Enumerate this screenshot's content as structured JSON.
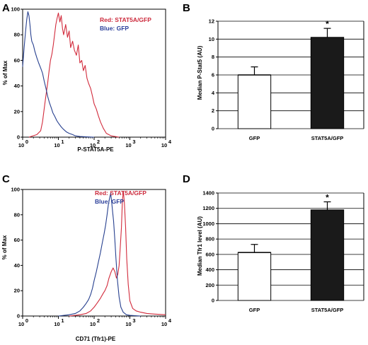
{
  "panels": {
    "A": "A",
    "B": "B",
    "C": "C",
    "D": "D"
  },
  "colors": {
    "red": "#d22b3c",
    "blue": "#27408f",
    "bar_white": "#ffffff",
    "bar_black": "#1a1a1a"
  },
  "chart_data": [
    {
      "panel": "A",
      "type": "line",
      "xlabel": "P-STAT5A-PE",
      "ylabel": "% of Max",
      "x_scale": "log",
      "xlim": [
        1,
        10000
      ],
      "ylim": [
        0,
        100
      ],
      "x_ticks": [
        "10",
        "10",
        "10",
        "10",
        "10"
      ],
      "x_tick_exponents": [
        "0",
        "1",
        "2",
        "3",
        "4"
      ],
      "y_ticks": [
        "0",
        "20",
        "40",
        "60",
        "80",
        "100"
      ],
      "legend": [
        "Red: STAT5A/GFP",
        "Blue: GFP"
      ],
      "series": [
        {
          "name": "Red: STAT5A/GFP",
          "color": "#d22b3c",
          "x": [
            1.5,
            2.5,
            3.2,
            3.6,
            4.0,
            4.5,
            5.0,
            5.5,
            6.0,
            6.6,
            7.2,
            7.8,
            8.5,
            9.2,
            10,
            11,
            12,
            13,
            14,
            16,
            18,
            20,
            22,
            25,
            28,
            32,
            36,
            40,
            45,
            50,
            56,
            63,
            70,
            80,
            90,
            100,
            115,
            130,
            150,
            180,
            220,
            300,
            500
          ],
          "y": [
            0,
            2,
            5,
            12,
            22,
            33,
            42,
            52,
            60,
            65,
            72,
            80,
            88,
            93,
            97,
            90,
            95,
            85,
            80,
            88,
            78,
            83,
            70,
            75,
            68,
            64,
            72,
            58,
            60,
            52,
            56,
            46,
            42,
            38,
            32,
            26,
            22,
            17,
            12,
            7,
            3,
            1,
            0
          ]
        },
        {
          "name": "Blue: GFP",
          "color": "#27408f",
          "x": [
            1,
            1.1,
            1.2,
            1.3,
            1.4,
            1.5,
            1.6,
            1.7,
            1.8,
            2.0,
            2.2,
            2.5,
            2.8,
            3.2,
            3.6,
            4.0,
            4.5,
            5.0,
            5.6,
            6.3,
            7.0,
            8.0,
            9.0,
            10,
            12,
            14,
            17,
            20,
            25,
            30,
            40,
            60,
            100
          ],
          "y": [
            55,
            70,
            82,
            92,
            98,
            95,
            88,
            80,
            75,
            72,
            67,
            62,
            58,
            54,
            50,
            44,
            38,
            32,
            27,
            23,
            19,
            16,
            13,
            11,
            8,
            6,
            4,
            3,
            2,
            1,
            0.5,
            0.2,
            0
          ]
        }
      ]
    },
    {
      "panel": "B",
      "type": "bar",
      "categories": [
        "GFP",
        "STAT5A/GFP"
      ],
      "values": [
        6.0,
        10.2
      ],
      "errors": [
        0.9,
        1.0
      ],
      "annotations": [
        "",
        "*"
      ],
      "ylabel": "Median P-Stat5 (AU)",
      "ylim": [
        0,
        12
      ],
      "y_ticks": [
        "0",
        "2",
        "4",
        "6",
        "8",
        "10",
        "12"
      ],
      "grid": true
    },
    {
      "panel": "C",
      "type": "line",
      "xlabel": "CD71 (Tfr1)-PE",
      "ylabel": "% of Max",
      "x_scale": "log",
      "xlim": [
        1,
        10000
      ],
      "ylim": [
        0,
        100
      ],
      "x_ticks": [
        "10",
        "10",
        "10",
        "10",
        "10"
      ],
      "x_tick_exponents": [
        "0",
        "1",
        "2",
        "3",
        "4"
      ],
      "y_ticks": [
        "0",
        "20",
        "40",
        "60",
        "80",
        "100"
      ],
      "legend": [
        "Red: STAT5A/GFP",
        "Blue: GFP"
      ],
      "series": [
        {
          "name": "Red: STAT5A/GFP",
          "color": "#d22b3c",
          "x": [
            20,
            30,
            40,
            60,
            80,
            100,
            120,
            150,
            180,
            200,
            230,
            260,
            300,
            340,
            380,
            420,
            460,
            500,
            540,
            580,
            620,
            660,
            700,
            760,
            820,
            900,
            1000,
            1200,
            1500,
            2000,
            3000,
            5000,
            10000
          ],
          "y": [
            0,
            0.5,
            1,
            2,
            4,
            7,
            10,
            14,
            18,
            20,
            24,
            30,
            35,
            38,
            35,
            30,
            33,
            40,
            55,
            70,
            92,
            98,
            90,
            70,
            45,
            25,
            12,
            6,
            4,
            3,
            2,
            1.5,
            1
          ]
        },
        {
          "name": "Blue: GFP",
          "color": "#27408f",
          "x": [
            10,
            20,
            30,
            40,
            50,
            60,
            70,
            80,
            90,
            100,
            115,
            130,
            150,
            170,
            190,
            210,
            230,
            250,
            270,
            290,
            310,
            330,
            350,
            380,
            410,
            450,
            500,
            560,
            650,
            800,
            1000,
            2000
          ],
          "y": [
            0,
            1,
            2,
            4,
            7,
            10,
            13,
            17,
            22,
            28,
            35,
            42,
            50,
            58,
            65,
            72,
            80,
            88,
            93,
            97,
            90,
            82,
            75,
            60,
            45,
            28,
            15,
            7,
            3,
            1,
            0.5,
            0
          ]
        }
      ]
    },
    {
      "panel": "D",
      "type": "bar",
      "categories": [
        "GFP",
        "STAT5A/GFP"
      ],
      "values": [
        625,
        1180
      ],
      "errors": [
        105,
        105
      ],
      "annotations": [
        "",
        "*"
      ],
      "ylabel": "Median Tfr1 level (AU)",
      "ylim": [
        0,
        1400
      ],
      "y_ticks": [
        "0",
        "200",
        "400",
        "600",
        "800",
        "1000",
        "1200",
        "1400"
      ],
      "grid": true
    }
  ]
}
